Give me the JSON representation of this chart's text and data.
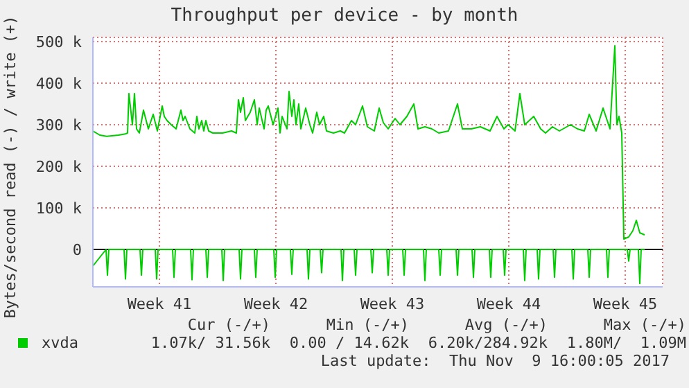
{
  "chart_data": {
    "type": "line",
    "title": "Throughput per device - by month",
    "ylabel": "Bytes/second read (-) / write (+)",
    "xlim": [
      "2017-10-07T12:00",
      "2017-11-10T18:00"
    ],
    "xticks": [
      {
        "value": "2017-10-11T12:00",
        "label": "Week 41"
      },
      {
        "value": "2017-10-18T12:00",
        "label": "Week 42"
      },
      {
        "value": "2017-10-25T12:00",
        "label": "Week 43"
      },
      {
        "value": "2017-11-01T12:00",
        "label": "Week 44"
      },
      {
        "value": "2017-11-08T12:00",
        "label": "Week 45"
      }
    ],
    "ylim": [
      -90000,
      510000
    ],
    "yticks": [
      0,
      {
        "value": 100000,
        "label": "100 k"
      },
      {
        "value": 200000,
        "label": "200 k"
      },
      {
        "value": 300000,
        "label": "300 k"
      },
      {
        "value": 400000,
        "label": "400 k"
      },
      {
        "value": 500000,
        "label": "500 k"
      }
    ],
    "grid": true,
    "legend": "bottom left",
    "marker": "none",
    "line_style": "solid",
    "ref_lines": [
      {
        "axis": "y",
        "value": 0,
        "color": "#000000"
      }
    ],
    "series": [
      {
        "name": "xvda",
        "color": "#00cc00",
        "x": [
          "2017-10-07T12:00",
          "2017-10-07T22:00",
          "2017-10-08T08:00",
          "2017-10-09T01:00",
          "2017-10-09T11:00",
          "2017-10-09T14:00",
          "2017-10-09T16:00",
          "2017-10-09T21:00",
          "2017-10-10T00:00",
          "2017-10-10T03:00",
          "2017-10-10T07:00",
          "2017-10-10T13:00",
          "2017-10-10T20:00",
          "2017-10-11T03:00",
          "2017-10-11T09:00",
          "2017-10-11T16:00",
          "2017-10-11T19:00",
          "2017-10-11T23:00",
          "2017-10-12T05:00",
          "2017-10-12T12:00",
          "2017-10-12T19:00",
          "2017-10-12T22:00",
          "2017-10-13T01:00",
          "2017-10-13T08:00",
          "2017-10-13T15:00",
          "2017-10-13T18:00",
          "2017-10-13T21:00",
          "2017-10-14T01:00",
          "2017-10-14T04:00",
          "2017-10-14T07:00",
          "2017-10-14T11:00",
          "2017-10-14T17:00",
          "2017-10-15T07:00",
          "2017-10-15T20:00",
          "2017-10-16T03:00",
          "2017-10-16T06:00",
          "2017-10-16T09:00",
          "2017-10-16T13:00",
          "2017-10-16T16:00",
          "2017-10-16T23:00",
          "2017-10-17T05:00",
          "2017-10-17T09:00",
          "2017-10-17T12:00",
          "2017-10-17T19:00",
          "2017-10-17T22:00",
          "2017-10-18T01:00",
          "2017-10-18T08:00",
          "2017-10-18T15:00",
          "2017-10-18T18:00",
          "2017-10-18T21:00",
          "2017-10-19T04:00",
          "2017-10-19T07:00",
          "2017-10-19T11:00",
          "2017-10-19T14:00",
          "2017-10-19T17:00",
          "2017-10-19T21:00",
          "2017-10-20T00:00",
          "2017-10-20T07:00",
          "2017-10-20T13:00",
          "2017-10-20T17:00",
          "2017-10-20T23:00",
          "2017-10-21T03:00",
          "2017-10-21T09:00",
          "2017-10-21T13:00",
          "2017-10-21T23:00",
          "2017-10-22T09:00",
          "2017-10-22T15:00",
          "2017-10-23T01:00",
          "2017-10-23T07:00",
          "2017-10-23T17:00",
          "2017-10-24T00:00",
          "2017-10-24T10:00",
          "2017-10-24T17:00",
          "2017-10-24T23:00",
          "2017-10-25T06:00",
          "2017-10-25T16:00",
          "2017-10-25T23:00",
          "2017-10-26T09:00",
          "2017-10-26T19:00",
          "2017-10-27T01:00",
          "2017-10-27T11:00",
          "2017-10-27T21:00",
          "2017-10-28T07:00",
          "2017-10-28T21:00",
          "2017-10-29T10:00",
          "2017-10-29T17:00",
          "2017-10-30T06:00",
          "2017-10-30T19:00",
          "2017-10-31T09:00",
          "2017-10-31T19:00",
          "2017-11-01T05:00",
          "2017-11-01T11:00",
          "2017-11-01T21:00",
          "2017-11-02T04:00",
          "2017-11-02T11:00",
          "2017-11-03T00:00",
          "2017-11-03T10:00",
          "2017-11-03T17:00",
          "2017-11-04T03:00",
          "2017-11-04T13:00",
          "2017-11-05T05:00",
          "2017-11-05T15:00",
          "2017-11-06T01:00",
          "2017-11-06T08:00",
          "2017-11-06T18:00",
          "2017-11-07T04:00",
          "2017-11-07T14:00",
          "2017-11-07T21:00",
          "2017-11-08T00:00",
          "2017-11-08T03:00",
          "2017-11-08T07:00",
          "2017-11-08T10:00",
          "2017-11-08T17:00",
          "2017-11-08T23:00",
          "2017-11-09T04:00",
          "2017-11-09T09:00",
          "2017-11-09T16:00"
        ],
        "values": [
          285000,
          275000,
          272000,
          275000,
          278000,
          280000,
          375000,
          300000,
          375000,
          290000,
          280000,
          335000,
          290000,
          325000,
          285000,
          345000,
          320000,
          310000,
          300000,
          290000,
          335000,
          310000,
          320000,
          290000,
          280000,
          320000,
          290000,
          310000,
          285000,
          310000,
          285000,
          280000,
          280000,
          285000,
          280000,
          360000,
          330000,
          365000,
          310000,
          330000,
          360000,
          300000,
          340000,
          290000,
          335000,
          345000,
          300000,
          340000,
          280000,
          320000,
          290000,
          380000,
          320000,
          360000,
          300000,
          350000,
          290000,
          340000,
          300000,
          280000,
          330000,
          300000,
          320000,
          285000,
          280000,
          285000,
          280000,
          310000,
          300000,
          345000,
          295000,
          285000,
          340000,
          305000,
          290000,
          315000,
          300000,
          320000,
          350000,
          290000,
          295000,
          290000,
          280000,
          285000,
          350000,
          290000,
          290000,
          295000,
          285000,
          320000,
          290000,
          300000,
          285000,
          375000,
          300000,
          320000,
          290000,
          280000,
          295000,
          285000,
          300000,
          290000,
          285000,
          325000,
          285000,
          340000,
          290000,
          490000,
          300000,
          320000,
          280000,
          25000,
          30000,
          45000,
          70000,
          40000,
          35000
        ]
      },
      {
        "color": "#00cc00",
        "x": [
          "2017-10-07T12:00",
          "2017-10-08T07:00",
          "2017-10-08T09:00",
          "2017-10-08T11:00",
          "2017-10-09T09:00",
          "2017-10-09T11:00",
          "2017-10-09T13:00",
          "2017-10-10T08:00",
          "2017-10-10T10:00",
          "2017-10-10T12:00",
          "2017-10-11T06:00",
          "2017-10-11T08:00",
          "2017-10-11T10:00",
          "2017-10-12T07:00",
          "2017-10-12T09:00",
          "2017-10-12T11:00",
          "2017-10-13T09:00",
          "2017-10-13T11:00",
          "2017-10-13T13:00",
          "2017-10-14T07:00",
          "2017-10-14T09:00",
          "2017-10-14T11:00",
          "2017-10-15T06:00",
          "2017-10-15T08:00",
          "2017-10-15T10:00",
          "2017-10-16T07:00",
          "2017-10-16T09:00",
          "2017-10-16T11:00",
          "2017-10-17T05:00",
          "2017-10-17T07:00",
          "2017-10-17T09:00",
          "2017-10-18T09:00",
          "2017-10-18T11:00",
          "2017-10-18T13:00",
          "2017-10-19T09:00",
          "2017-10-19T11:00",
          "2017-10-19T13:00",
          "2017-10-20T09:00",
          "2017-10-20T11:00",
          "2017-10-20T13:00",
          "2017-10-21T04:00",
          "2017-10-21T06:00",
          "2017-10-21T08:00",
          "2017-10-22T10:00",
          "2017-10-22T12:00",
          "2017-10-22T14:00",
          "2017-10-23T05:00",
          "2017-10-23T07:00",
          "2017-10-23T09:00",
          "2017-10-24T05:00",
          "2017-10-24T07:00",
          "2017-10-24T09:00",
          "2017-10-25T04:00",
          "2017-10-25T06:00",
          "2017-10-25T08:00",
          "2017-10-26T03:00",
          "2017-10-26T05:00",
          "2017-10-26T07:00",
          "2017-10-27T09:00",
          "2017-10-27T11:00",
          "2017-10-27T13:00",
          "2017-10-28T07:00",
          "2017-10-28T09:00",
          "2017-10-28T11:00",
          "2017-10-29T08:00",
          "2017-10-29T10:00",
          "2017-10-29T12:00",
          "2017-10-30T07:00",
          "2017-10-30T09:00",
          "2017-10-30T11:00",
          "2017-10-31T08:00",
          "2017-10-31T10:00",
          "2017-10-31T12:00",
          "2017-11-01T04:00",
          "2017-11-01T06:00",
          "2017-11-01T08:00",
          "2017-11-02T09:00",
          "2017-11-02T11:00",
          "2017-11-02T13:00",
          "2017-11-03T05:00",
          "2017-11-03T07:00",
          "2017-11-03T09:00",
          "2017-11-04T04:00",
          "2017-11-04T06:00",
          "2017-11-04T08:00",
          "2017-11-05T07:00",
          "2017-11-05T09:00",
          "2017-11-05T11:00",
          "2017-11-06T06:00",
          "2017-11-06T08:00",
          "2017-11-06T10:00",
          "2017-11-07T09:00",
          "2017-11-07T11:00",
          "2017-11-07T13:00",
          "2017-11-08T15:00",
          "2017-11-08T17:00",
          "2017-11-08T19:00",
          "2017-11-09T07:00",
          "2017-11-09T09:00",
          "2017-11-09T11:00",
          "2017-11-09T16:00"
        ],
        "values": [
          -40000,
          0,
          -62000,
          0,
          0,
          -71000,
          0,
          0,
          -62000,
          0,
          0,
          -71000,
          0,
          0,
          -67000,
          0,
          0,
          -73000,
          0,
          0,
          -67000,
          0,
          0,
          -75000,
          0,
          0,
          -71000,
          0,
          0,
          -67000,
          0,
          0,
          -67000,
          0,
          0,
          -60000,
          0,
          0,
          -71000,
          0,
          0,
          -56000,
          0,
          0,
          -75000,
          0,
          0,
          -62000,
          0,
          0,
          -56000,
          0,
          0,
          -62000,
          0,
          0,
          -62000,
          0,
          0,
          -75000,
          0,
          0,
          -62000,
          0,
          0,
          -62000,
          0,
          0,
          -67000,
          0,
          0,
          -67000,
          0,
          0,
          -62000,
          0,
          0,
          -75000,
          0,
          0,
          -71000,
          0,
          0,
          -67000,
          0,
          0,
          -71000,
          0,
          0,
          -67000,
          0,
          0,
          -67000,
          0,
          0,
          -28000,
          0,
          0,
          -82000,
          0,
          0
        ]
      }
    ],
    "annotations": [
      "Cur (-/+)",
      "Min (-/+)",
      "Avg (-/+)",
      "Max (-/+)",
      "1.07k/ 31.56k",
      "0.00 / 14.62k",
      "6.20k/284.92k",
      "1.80M/  1.09M",
      "Last update:  Thu Nov  9 16:00:05 2017"
    ]
  }
}
